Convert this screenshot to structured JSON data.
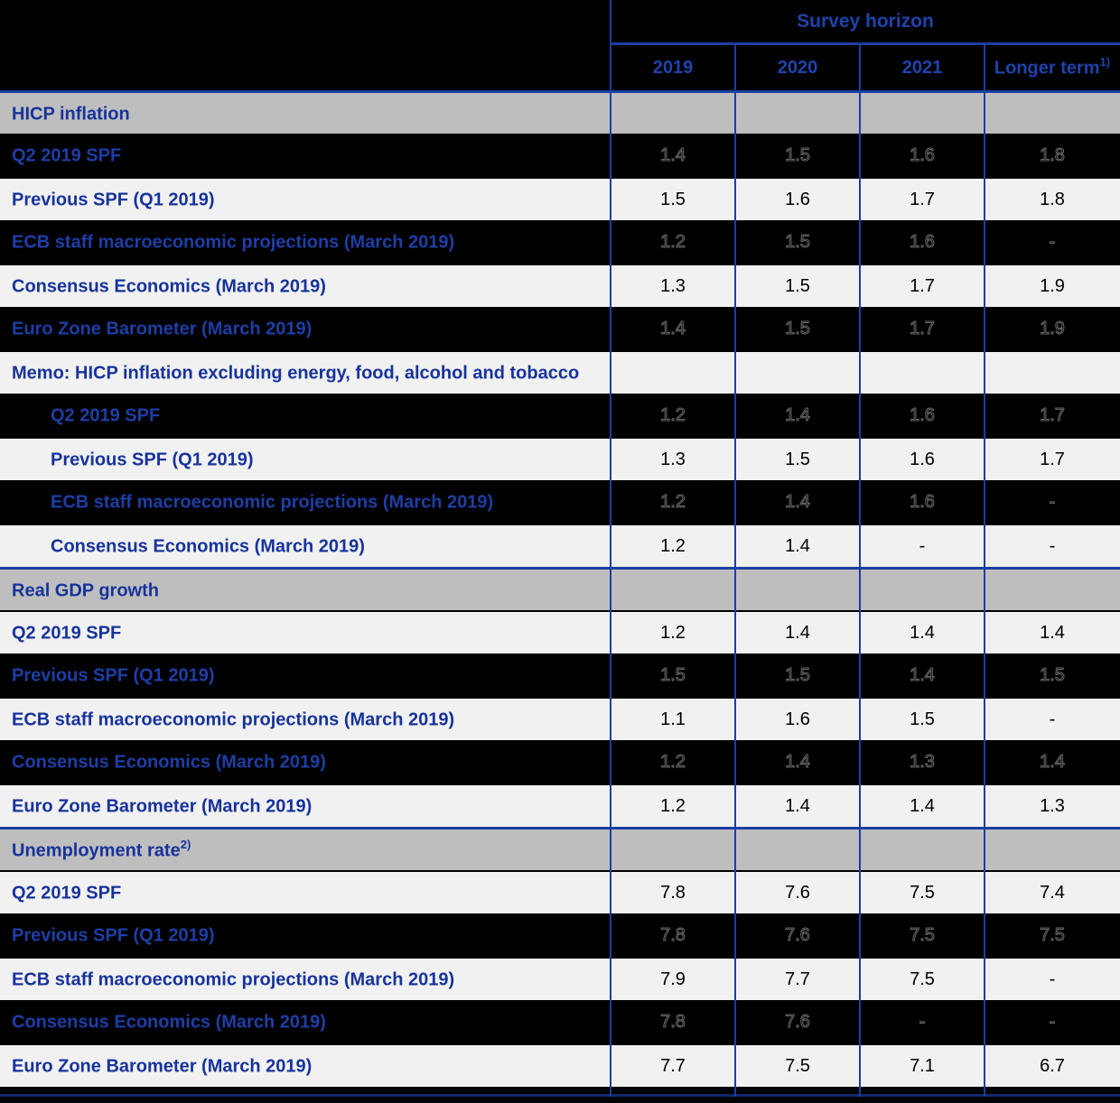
{
  "colors": {
    "page_background": "#000000",
    "section_row_background": "#BEBEBE",
    "light_row_background": "#F1F1F1",
    "dark_row_background": "#000000",
    "rule_line_blue": "#1A3FA3",
    "bottom_rule_navy": "#10296F",
    "label_text_blue": "#17339B",
    "header_text_blue": "#1E43AC",
    "value_text_black": "#000000"
  },
  "header": {
    "title": "Survey horizon",
    "columns": [
      "2019",
      "2020",
      "2021"
    ],
    "longer_term_label": "Longer term",
    "longer_term_sup": "1)"
  },
  "rows": [
    {
      "label": "HICP inflation",
      "variant": "section",
      "values": [
        "",
        "",
        "",
        ""
      ]
    },
    {
      "label": "Q2 2019 SPF",
      "variant": "dark",
      "values": [
        "1.4",
        "1.5",
        "1.6",
        "1.8"
      ]
    },
    {
      "label": "Previous SPF (Q1 2019)",
      "variant": "light",
      "values": [
        "1.5",
        "1.6",
        "1.7",
        "1.8"
      ]
    },
    {
      "label": "ECB staff macroeconomic projections (March 2019)",
      "variant": "dark",
      "values": [
        "1.2",
        "1.5",
        "1.6",
        "-"
      ]
    },
    {
      "label": "Consensus Economics (March 2019)",
      "variant": "light",
      "values": [
        "1.3",
        "1.5",
        "1.7",
        "1.9"
      ]
    },
    {
      "label": "Euro Zone Barometer (March 2019)",
      "variant": "dark",
      "values": [
        "1.4",
        "1.5",
        "1.7",
        "1.9"
      ]
    },
    {
      "label": "Memo: HICP inflation excluding energy, food, alcohol and tobacco",
      "variant": "memo",
      "values": [
        "",
        "",
        "",
        ""
      ]
    },
    {
      "label": "Q2 2019 SPF",
      "variant": "dark",
      "indent": true,
      "values": [
        "1.2",
        "1.4",
        "1.6",
        "1.7"
      ]
    },
    {
      "label": "Previous SPF (Q1 2019)",
      "variant": "light",
      "indent": true,
      "values": [
        "1.3",
        "1.5",
        "1.6",
        "1.7"
      ]
    },
    {
      "label": "ECB staff macroeconomic projections (March 2019)",
      "variant": "dark",
      "indent": true,
      "values": [
        "1.2",
        "1.4",
        "1.6",
        "-"
      ]
    },
    {
      "label": "Consensus Economics (March 2019)",
      "variant": "light",
      "indent": true,
      "values": [
        "1.2",
        "1.4",
        "-",
        "-"
      ]
    },
    {
      "label": "Real GDP growth",
      "variant": "section",
      "values": [
        "",
        "",
        "",
        ""
      ]
    },
    {
      "label": "Q2 2019 SPF",
      "variant": "light",
      "values": [
        "1.2",
        "1.4",
        "1.4",
        "1.4"
      ]
    },
    {
      "label": "Previous SPF (Q1 2019)",
      "variant": "dark",
      "values": [
        "1.5",
        "1.5",
        "1.4",
        "1.5"
      ]
    },
    {
      "label": "ECB staff macroeconomic projections (March 2019)",
      "variant": "light",
      "values": [
        "1.1",
        "1.6",
        "1.5",
        "-"
      ]
    },
    {
      "label": "Consensus Economics (March 2019)",
      "variant": "dark",
      "values": [
        "1.2",
        "1.4",
        "1.3",
        "1.4"
      ]
    },
    {
      "label": "Euro Zone Barometer (March 2019)",
      "variant": "light",
      "values": [
        "1.2",
        "1.4",
        "1.4",
        "1.3"
      ]
    },
    {
      "label": "Unemployment rate",
      "sup": "2)",
      "variant": "section",
      "values": [
        "",
        "",
        "",
        ""
      ]
    },
    {
      "label": "Q2 2019 SPF",
      "variant": "light",
      "values": [
        "7.8",
        "7.6",
        "7.5",
        "7.4"
      ]
    },
    {
      "label": "Previous SPF (Q1 2019)",
      "variant": "dark",
      "values": [
        "7.8",
        "7.6",
        "7.5",
        "7.5"
      ]
    },
    {
      "label": "ECB staff macroeconomic projections (March 2019)",
      "variant": "light",
      "values": [
        "7.9",
        "7.7",
        "7.5",
        "-"
      ]
    },
    {
      "label": "Consensus Economics (March 2019)",
      "variant": "dark",
      "values": [
        "7.8",
        "7.6",
        "-",
        "-"
      ]
    },
    {
      "label": "Euro Zone Barometer (March 2019)",
      "variant": "light",
      "values": [
        "7.7",
        "7.5",
        "7.1",
        "6.7"
      ]
    }
  ]
}
